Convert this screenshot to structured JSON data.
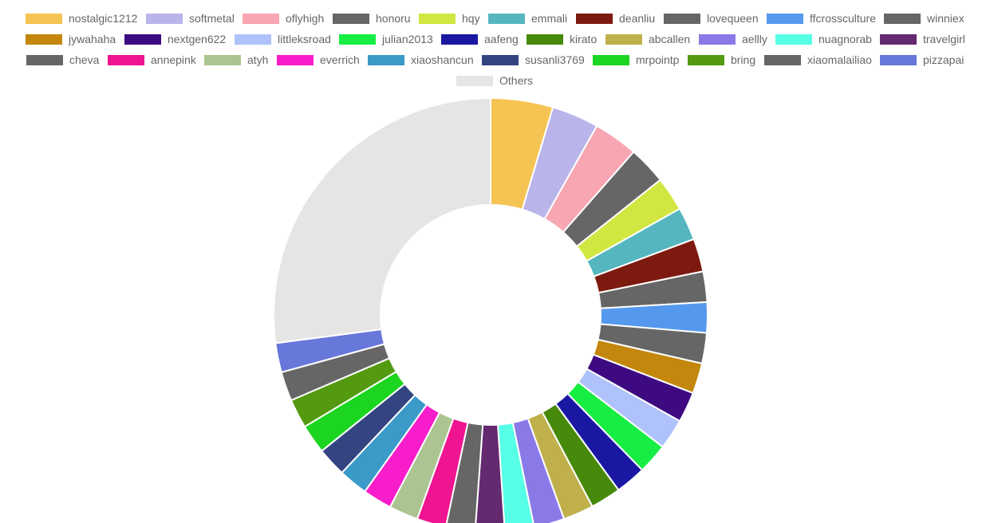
{
  "chart_data": {
    "type": "pie",
    "variant": "doughnut",
    "legend_position": "top",
    "slice_border_color": "#ffffff",
    "labels": [
      "nostalgic1212",
      "softmetal",
      "oflyhigh",
      "honoru",
      "hqy",
      "emmali",
      "deanliu",
      "lovequeen",
      "ffcrossculture",
      "winniex",
      "jywahaha",
      "nextgen622",
      "littleksroad",
      "julian2013",
      "aafeng",
      "kirato",
      "abcallen",
      "aellly",
      "nuagnorab",
      "travelgirl",
      "cheva",
      "annepink",
      "atyh",
      "everrich",
      "xiaoshancun",
      "susanli3769",
      "mrpointp",
      "bring",
      "xiaomalailiao",
      "pizzapai",
      "Others"
    ],
    "values": [
      4.9,
      3.7,
      3.5,
      3.0,
      2.7,
      2.6,
      2.6,
      2.4,
      2.4,
      2.4,
      2.4,
      2.4,
      2.4,
      2.4,
      2.4,
      2.4,
      2.4,
      2.4,
      2.3,
      2.3,
      2.3,
      2.3,
      2.3,
      2.3,
      2.3,
      2.3,
      2.3,
      2.3,
      2.3,
      2.3,
      28.6
    ],
    "colors": [
      "#f5c453",
      "#b9b5ea",
      "#f7a6b2",
      "#666666",
      "#d1e640",
      "#55b6c0",
      "#7d1a10",
      "#666666",
      "#5599ee",
      "#666666",
      "#c2870c",
      "#3e0a81",
      "#afc2fb",
      "#17ee43",
      "#1a18a3",
      "#478a0b",
      "#bfb04c",
      "#8a7ae8",
      "#56ffe6",
      "#632a70",
      "#666666",
      "#ef1490",
      "#acc491",
      "#f81dcb",
      "#3b9ac8",
      "#344481",
      "#1cd520",
      "#539a10",
      "#666666",
      "#6777da",
      "#e5e5e5"
    ]
  }
}
